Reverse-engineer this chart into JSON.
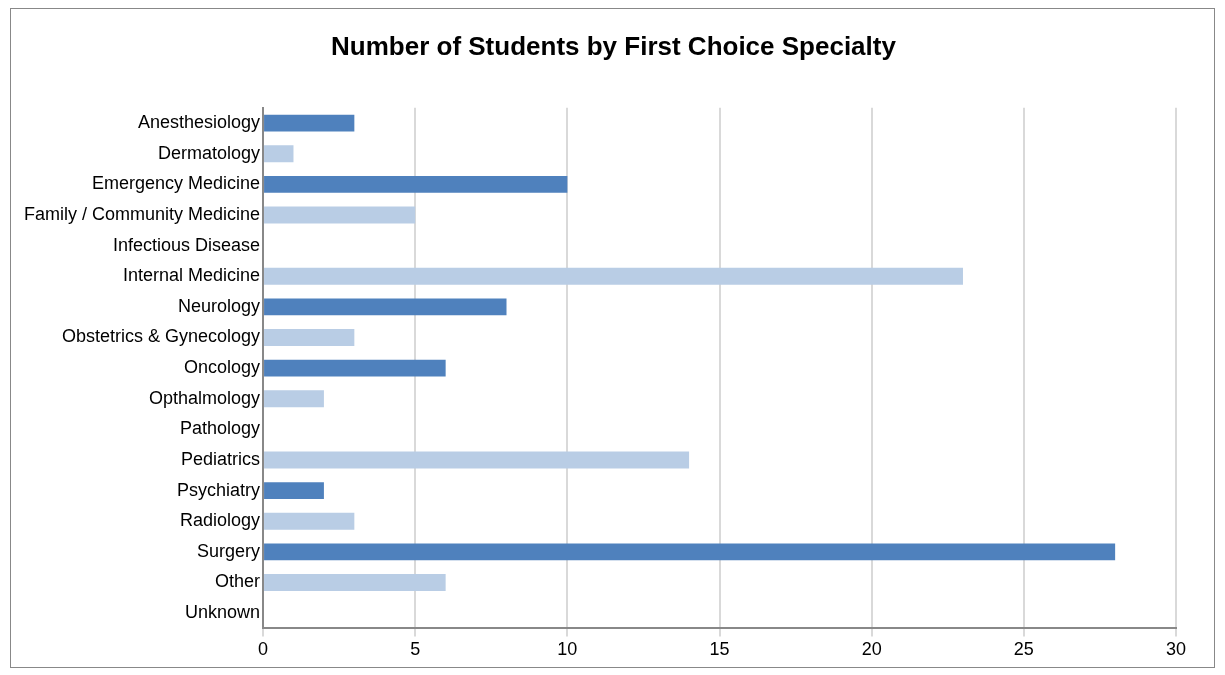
{
  "chart_data": {
    "type": "bar",
    "orientation": "horizontal",
    "title": "Number of Students by First Choice Specialty",
    "categories": [
      "Anesthesiology",
      "Dermatology",
      "Emergency Medicine",
      "Family / Community Medicine",
      "Infectious Disease",
      "Internal Medicine",
      "Neurology",
      "Obstetrics & Gynecology",
      "Oncology",
      "Opthalmology",
      "Pathology",
      "Pediatrics",
      "Psychiatry",
      "Radiology",
      "Surgery",
      "Other",
      "Unknown"
    ],
    "values": [
      3,
      1,
      10,
      5,
      0,
      23,
      8,
      3,
      6,
      2,
      0,
      14,
      2,
      3,
      28,
      6,
      0
    ],
    "colors": [
      "#4f81bd",
      "#b9cde5",
      "#4f81bd",
      "#b9cde5",
      "#4f81bd",
      "#b9cde5",
      "#4f81bd",
      "#b9cde5",
      "#4f81bd",
      "#b9cde5",
      "#4f81bd",
      "#b9cde5",
      "#4f81bd",
      "#b9cde5",
      "#4f81bd",
      "#b9cde5",
      "#4f81bd"
    ],
    "xlim": [
      0,
      30
    ],
    "xticks": [
      0,
      5,
      10,
      15,
      20,
      25,
      30
    ],
    "grid": "x",
    "legend": false
  }
}
